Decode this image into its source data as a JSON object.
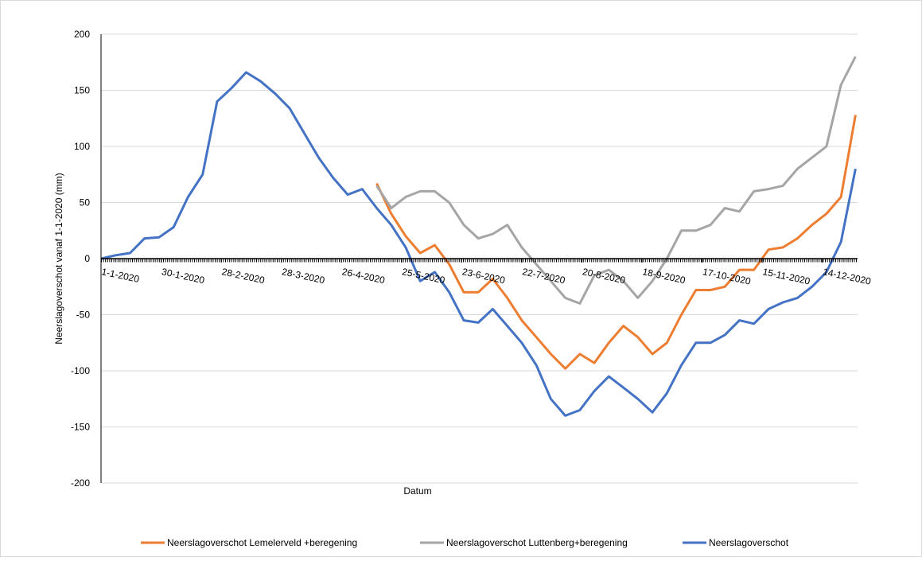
{
  "chart_data": {
    "type": "line",
    "y_label": "Neerslagoverschot vanaf 1-1-2020 (mm)",
    "x_label": "Datum",
    "x": [
      "1-1-2020",
      "8-1-2020",
      "15-1-2020",
      "22-1-2020",
      "29-1-2020",
      "5-2-2020",
      "12-2-2020",
      "19-2-2020",
      "26-2-2020",
      "4-3-2020",
      "11-3-2020",
      "18-3-2020",
      "25-3-2020",
      "1-4-2020",
      "8-4-2020",
      "15-4-2020",
      "22-4-2020",
      "29-4-2020",
      "6-5-2020",
      "13-5-2020",
      "20-5-2020",
      "27-5-2020",
      "3-6-2020",
      "10-6-2020",
      "17-6-2020",
      "24-6-2020",
      "1-7-2020",
      "8-7-2020",
      "15-7-2020",
      "22-7-2020",
      "29-7-2020",
      "5-8-2020",
      "12-8-2020",
      "19-8-2020",
      "26-8-2020",
      "2-9-2020",
      "9-9-2020",
      "16-9-2020",
      "23-9-2020",
      "30-9-2020",
      "7-10-2020",
      "14-10-2020",
      "21-10-2020",
      "28-10-2020",
      "4-11-2020",
      "11-11-2020",
      "18-11-2020",
      "25-11-2020",
      "2-12-2020",
      "9-12-2020",
      "16-12-2020",
      "23-12-2020",
      "30-12-2020"
    ],
    "xlim": [
      "1-1-2020",
      "31-12-2020"
    ],
    "xticks": [
      "1-1-2020",
      "30-1-2020",
      "28-2-2020",
      "28-3-2020",
      "26-4-2020",
      "25-5-2020",
      "23-6-2020",
      "22-7-2020",
      "20-8-2020",
      "18-9-2020",
      "17-10-2020",
      "15-11-2020",
      "14-12-2020"
    ],
    "ylim": [
      -200,
      200
    ],
    "yticks": [
      -200,
      -150,
      -100,
      -50,
      0,
      50,
      100,
      150,
      200
    ],
    "grid": true,
    "legend": "bottom",
    "series": [
      {
        "name": "Neerslagoverschot Lemelerveld +beregening",
        "color": "#ed7d31",
        "values": [
          null,
          null,
          null,
          null,
          null,
          null,
          null,
          null,
          null,
          null,
          null,
          null,
          null,
          null,
          null,
          null,
          null,
          null,
          null,
          67,
          40,
          20,
          5,
          12,
          -5,
          -30,
          -30,
          -18,
          -35,
          -55,
          -70,
          -85,
          -98,
          -85,
          -93,
          -75,
          -60,
          -70,
          -85,
          -75,
          -50,
          -28,
          -28,
          -25,
          -10,
          -10,
          8,
          10,
          18,
          30,
          40,
          55,
          128
        ]
      },
      {
        "name": "Neerslagoverschot Luttenberg+beregening",
        "color": "#a5a5a5",
        "values": [
          null,
          null,
          null,
          null,
          null,
          null,
          null,
          null,
          null,
          null,
          null,
          null,
          null,
          null,
          null,
          null,
          null,
          null,
          null,
          65,
          45,
          55,
          60,
          60,
          50,
          30,
          18,
          22,
          30,
          10,
          -5,
          -20,
          -35,
          -40,
          -15,
          -10,
          -20,
          -35,
          -20,
          0,
          25,
          25,
          30,
          45,
          42,
          60,
          62,
          65,
          80,
          90,
          100,
          155,
          180
        ]
      },
      {
        "name": "Neerslagoverschot",
        "color": "#4472c4",
        "values": [
          0,
          3,
          5,
          18,
          19,
          28,
          55,
          75,
          140,
          152,
          166,
          158,
          147,
          134,
          112,
          90,
          72,
          57,
          62,
          45,
          30,
          10,
          -20,
          -12,
          -30,
          -55,
          -57,
          -45,
          -60,
          -75,
          -95,
          -125,
          -140,
          -135,
          -118,
          -105,
          -115,
          -125,
          -137,
          -120,
          -95,
          -75,
          -75,
          -68,
          -55,
          -58,
          -45,
          -39,
          -35,
          -25,
          -12,
          15,
          80
        ]
      }
    ]
  }
}
